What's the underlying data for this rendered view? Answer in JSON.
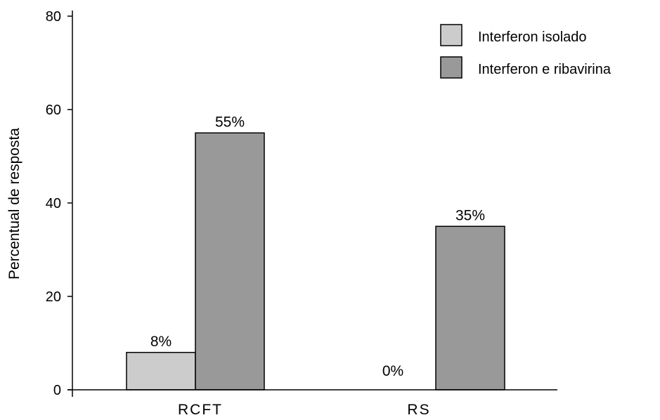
{
  "chart_data": {
    "type": "bar",
    "title": "",
    "xlabel": "",
    "ylabel": "Percentual de resposta",
    "ylim": [
      0,
      80
    ],
    "yticks": [
      0,
      20,
      40,
      60,
      80
    ],
    "categories": [
      "RCFT",
      "RS"
    ],
    "series": [
      {
        "name": "Interferon isolado",
        "values": [
          8,
          0
        ],
        "labels": [
          "8%",
          "0%"
        ],
        "color": "#cccccc"
      },
      {
        "name": "Interferon e ribavirina",
        "values": [
          55,
          35
        ],
        "labels": [
          "55%",
          "35%"
        ],
        "color": "#999999"
      }
    ],
    "legend_entries": [
      "Interferon isolado",
      "Interferon e ribavirina"
    ],
    "legend_position": "top-right",
    "grid": false
  }
}
